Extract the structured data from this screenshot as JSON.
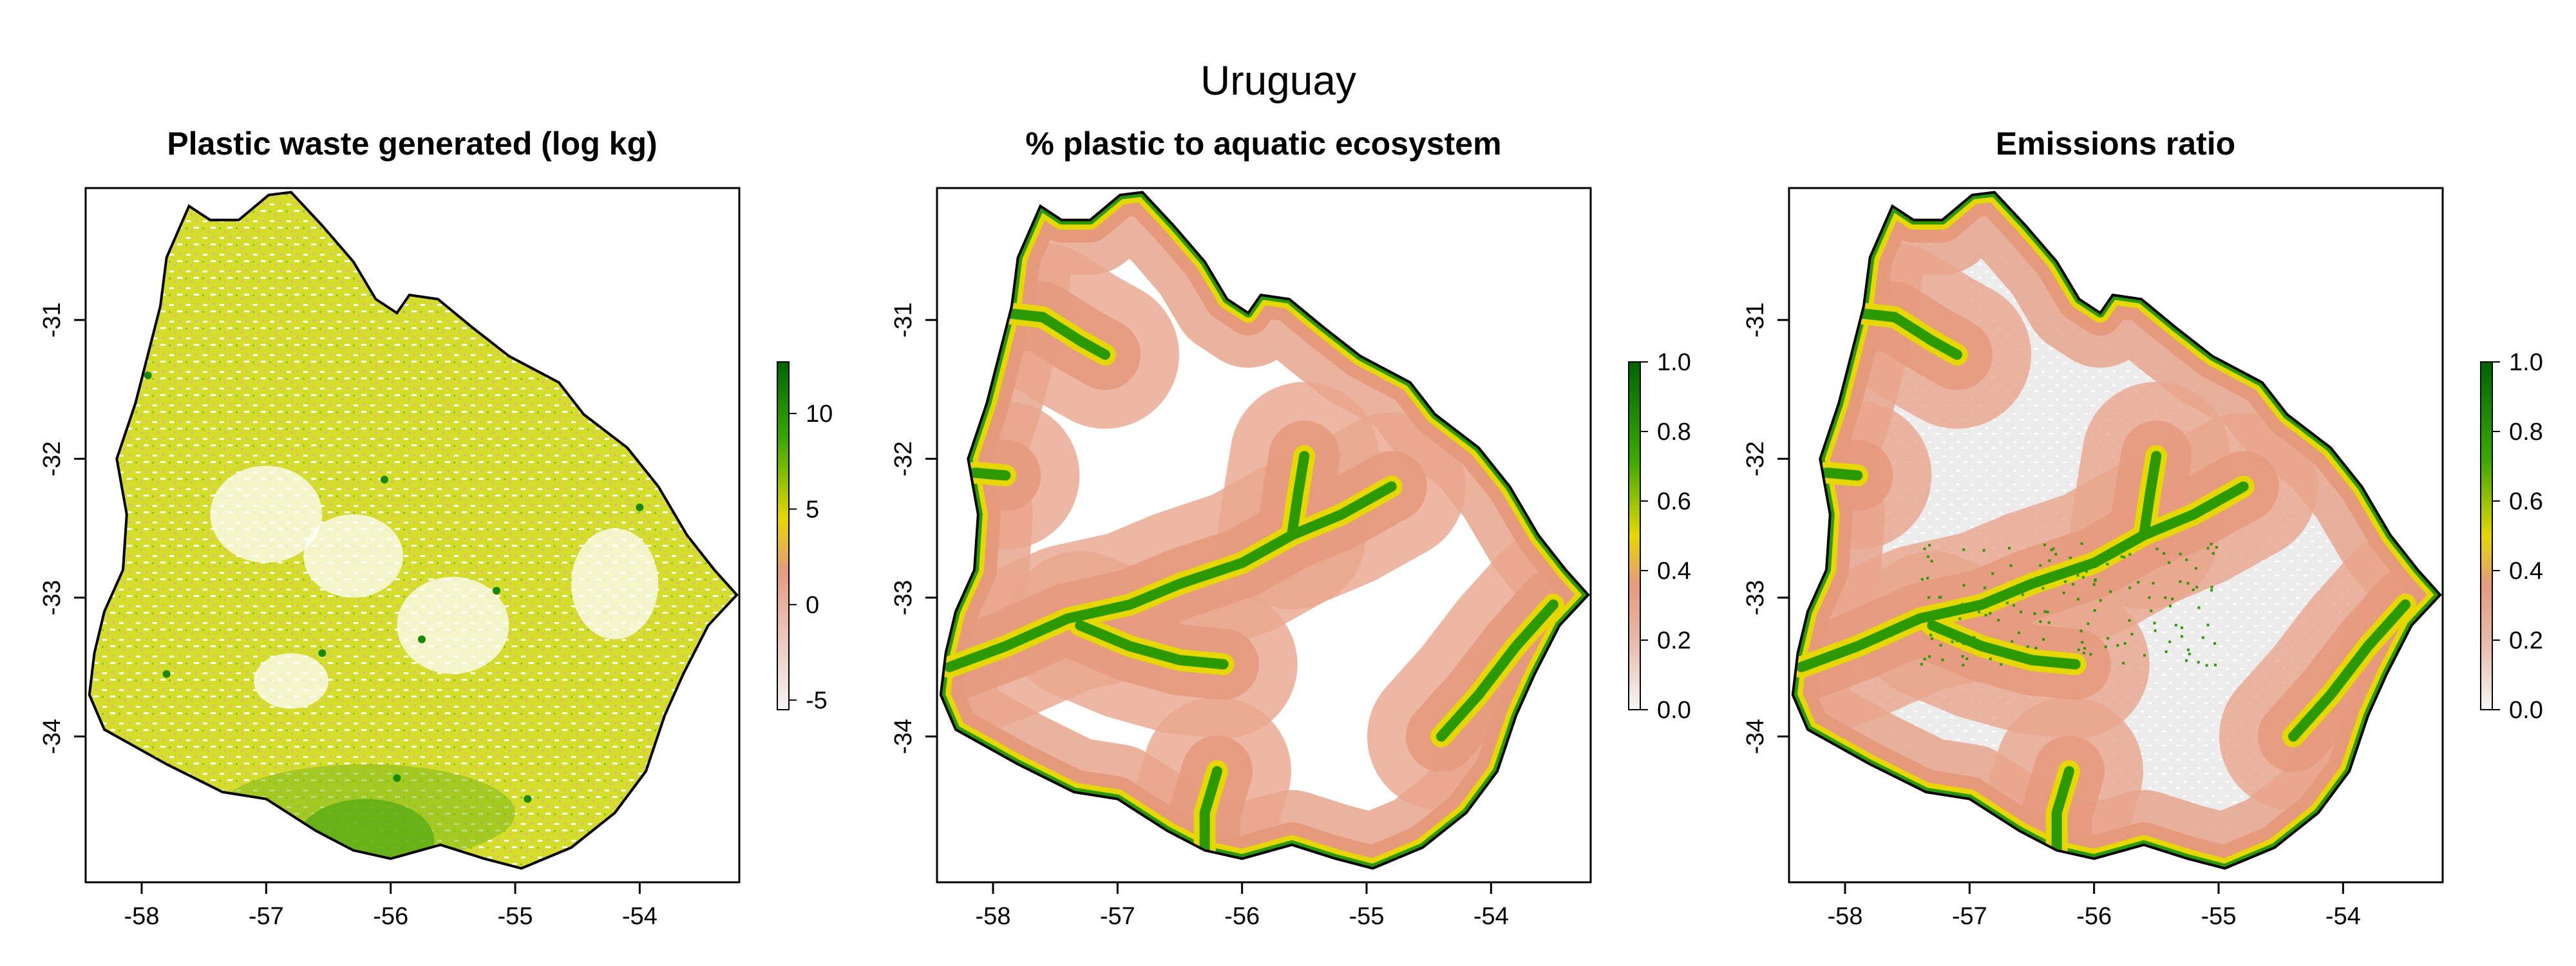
{
  "figure": {
    "title": "Uruguay",
    "colors": {
      "outline": "#000000",
      "scale_low": "#f4f4f4",
      "scale_mid_low": "#e59a7e",
      "scale_mid": "#e6d700",
      "scale_high": "#00a000",
      "scale_top": "#006400",
      "background_gray": "#ececec"
    }
  },
  "chart_data": [
    {
      "type": "heatmap",
      "title": "Plastic waste generated (log kg)",
      "x_ticks": [
        "-58",
        "-57",
        "-56",
        "-55",
        "-54"
      ],
      "y_ticks": [
        "-31",
        "-32",
        "-33",
        "-34"
      ],
      "x_tick_values": [
        -58,
        -57,
        -56,
        -55,
        -54
      ],
      "y_tick_values": [
        -31,
        -32,
        -33,
        -34
      ],
      "xlim": [
        -58.45,
        -53.2
      ],
      "ylim": [
        -35.05,
        -30.05
      ],
      "colorbar": {
        "range": [
          -5.5,
          12.7
        ],
        "ticks": [
          "-5",
          "0",
          "5",
          "10"
        ],
        "tick_values": [
          -5,
          0,
          5,
          10
        ]
      }
    },
    {
      "type": "heatmap",
      "title": "% plastic to aquatic ecosystem",
      "x_ticks": [
        "-58",
        "-57",
        "-56",
        "-55",
        "-54"
      ],
      "y_ticks": [
        "-31",
        "-32",
        "-33",
        "-34"
      ],
      "x_tick_values": [
        -58,
        -57,
        -56,
        -55,
        -54
      ],
      "y_tick_values": [
        -31,
        -32,
        -33,
        -34
      ],
      "xlim": [
        -58.45,
        -53.2
      ],
      "ylim": [
        -35.05,
        -30.05
      ],
      "colorbar": {
        "range": [
          0,
          1
        ],
        "ticks": [
          "0.0",
          "0.2",
          "0.4",
          "0.6",
          "0.8",
          "1.0"
        ],
        "tick_values": [
          0,
          0.2,
          0.4,
          0.6,
          0.8,
          1.0
        ]
      }
    },
    {
      "type": "heatmap",
      "title": "Emissions ratio",
      "x_ticks": [
        "-58",
        "-57",
        "-56",
        "-55",
        "-54"
      ],
      "y_ticks": [
        "-31",
        "-32",
        "-33",
        "-34"
      ],
      "x_tick_values": [
        -58,
        -57,
        -56,
        -55,
        -54
      ],
      "y_tick_values": [
        -31,
        -32,
        -33,
        -34
      ],
      "xlim": [
        -58.45,
        -53.2
      ],
      "ylim": [
        -35.05,
        -30.05
      ],
      "colorbar": {
        "range": [
          0,
          1
        ],
        "ticks": [
          "0.0",
          "0.2",
          "0.4",
          "0.6",
          "0.8",
          "1.0"
        ],
        "tick_values": [
          0,
          0.2,
          0.4,
          0.6,
          0.8,
          1.0
        ]
      }
    }
  ]
}
